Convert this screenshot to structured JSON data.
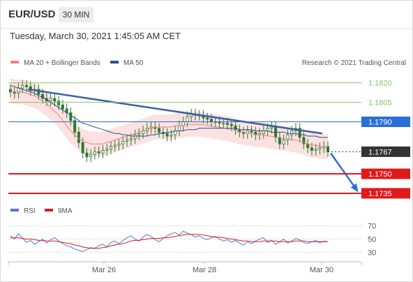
{
  "header": {
    "symbol": "EUR/USD",
    "interval": "30 MIN",
    "datetime": "Tuesday, March 30, 2021 1:45:05 AM CET"
  },
  "colors": {
    "ma20": "#f08080",
    "ma50": "#2f4f8f",
    "bollinger_fill": "#fcdcdc",
    "candle": "#2f7a2f",
    "trendline": "#3a5fa0",
    "resistance": "#8dc26a",
    "pivot": "#2a6fd6",
    "support": "#e0191b",
    "current": "#333333",
    "rsi": "#5577dd",
    "rsi_ma": "#e0191b"
  },
  "chart_data": [
    {
      "type": "candlestick",
      "legend": [
        {
          "name": "MA 20 + Bollinger Bands",
          "color": "#f08080"
        },
        {
          "name": "MA 50",
          "color": "#2f4f8f"
        }
      ],
      "credit": "Research © 2021 Trading Central",
      "ylim": [
        1.1728,
        1.183
      ],
      "levels": [
        {
          "value": 1.182,
          "label": "1.1820",
          "style": "resistance"
        },
        {
          "value": 1.1805,
          "label": "1.1805",
          "style": "resistance"
        },
        {
          "value": 1.179,
          "label": "1.1790",
          "style": "pivot"
        },
        {
          "value": 1.1767,
          "label": "1.1767",
          "style": "current"
        },
        {
          "value": 1.175,
          "label": "1.1750",
          "style": "support"
        },
        {
          "value": 1.1735,
          "label": "1.1735",
          "style": "support"
        }
      ],
      "x_ticks": [
        "Mar 26",
        "Mar 28",
        "Mar 30"
      ],
      "close_series": [
        1.1813,
        1.1812,
        1.1816,
        1.1818,
        1.1817,
        1.1814,
        1.1815,
        1.1811,
        1.1808,
        1.1806,
        1.1808,
        1.1806,
        1.1803,
        1.18,
        1.1797,
        1.1791,
        1.1782,
        1.1774,
        1.1766,
        1.1763,
        1.1765,
        1.1767,
        1.1766,
        1.1768,
        1.1769,
        1.1771,
        1.1772,
        1.1773,
        1.1775,
        1.1776,
        1.1777,
        1.178,
        1.1781,
        1.1783,
        1.1785,
        1.1786,
        1.1785,
        1.1782,
        1.1781,
        1.1779,
        1.178,
        1.1783,
        1.1787,
        1.179,
        1.1794,
        1.1796,
        1.1795,
        1.1795,
        1.1793,
        1.1792,
        1.179,
        1.179,
        1.1789,
        1.1789,
        1.1788,
        1.1787,
        1.1784,
        1.1782,
        1.1781,
        1.1783,
        1.1782,
        1.178,
        1.1781,
        1.1783,
        1.1785,
        1.1786,
        1.1778,
        1.1773,
        1.1776,
        1.178,
        1.1783,
        1.1785,
        1.1778,
        1.1773,
        1.177,
        1.1768,
        1.1769,
        1.177,
        1.1771,
        1.1767
      ],
      "ma20_series": [
        1.1814,
        1.1813,
        1.1813,
        1.1813,
        1.1812,
        1.1811,
        1.181,
        1.1808,
        1.1806,
        1.1804,
        1.1801,
        1.1798,
        1.1795,
        1.1791,
        1.1787,
        1.1783,
        1.178,
        1.1777,
        1.1775,
        1.1774,
        1.1773,
        1.1773,
        1.1773,
        1.1773,
        1.1774,
        1.1775,
        1.1776,
        1.1777,
        1.1778,
        1.1779,
        1.178,
        1.1781,
        1.1782,
        1.1783,
        1.1784,
        1.1785,
        1.1786,
        1.1786,
        1.1786,
        1.1786,
        1.1786,
        1.1787,
        1.1787,
        1.1787,
        1.1788,
        1.1788,
        1.1788,
        1.1788,
        1.1788,
        1.1787,
        1.1787,
        1.1786,
        1.1786,
        1.1785,
        1.1785,
        1.1784,
        1.1783,
        1.1782,
        1.1782,
        1.1781,
        1.1781,
        1.178,
        1.178,
        1.178,
        1.1779,
        1.1779,
        1.1778,
        1.1778,
        1.1777,
        1.1777,
        1.1776,
        1.1776,
        1.1775,
        1.1774,
        1.1773,
        1.1772,
        1.1772,
        1.1771,
        1.1771,
        1.1771
      ],
      "ma50_series": [
        1.1818,
        1.1817,
        1.1816,
        1.1815,
        1.1814,
        1.1813,
        1.1812,
        1.181,
        1.1809,
        1.1807,
        1.1805,
        1.1803,
        1.1801,
        1.1799,
        1.1797,
        1.1795,
        1.1793,
        1.1791,
        1.1789,
        1.1788,
        1.1787,
        1.1786,
        1.1785,
        1.1784,
        1.1783,
        1.1782,
        1.1781,
        1.1781,
        1.178,
        1.178,
        1.1779,
        1.1779,
        1.1779,
        1.1779,
        1.1779,
        1.178,
        1.178,
        1.1781,
        1.1781,
        1.1782,
        1.1782,
        1.1783,
        1.1783,
        1.1783,
        1.1784,
        1.1784,
        1.1784,
        1.1785,
        1.1785,
        1.1785,
        1.1785,
        1.1785,
        1.1785,
        1.1785,
        1.1785,
        1.1785,
        1.1785,
        1.1784,
        1.1784,
        1.1784,
        1.1784,
        1.1783,
        1.1783,
        1.1783,
        1.1783,
        1.1782,
        1.1782,
        1.1782,
        1.1782,
        1.1781,
        1.1781,
        1.1781,
        1.178,
        1.178,
        1.1779,
        1.1779,
        1.1779,
        1.1778,
        1.1778,
        1.1778
      ],
      "trendline": [
        [
          0,
          1.1815
        ],
        [
          78,
          1.1781
        ]
      ],
      "projection_to": 1.1735
    },
    {
      "type": "line",
      "legend": [
        {
          "name": "RSI",
          "color": "#5577dd"
        },
        {
          "name": "9MA",
          "color": "#e0191b"
        }
      ],
      "ylim": [
        22,
        78
      ],
      "y_ticks": [
        30,
        50,
        70
      ],
      "rsi": [
        55,
        50,
        58,
        52,
        45,
        48,
        42,
        46,
        50,
        44,
        49,
        52,
        47,
        43,
        40,
        38,
        35,
        33,
        31,
        34,
        37,
        36,
        40,
        42,
        38,
        45,
        47,
        43,
        48,
        52,
        55,
        50,
        47,
        53,
        57,
        54,
        49,
        46,
        51,
        55,
        58,
        60,
        56,
        62,
        59,
        57,
        53,
        55,
        51,
        49,
        52,
        54,
        50,
        47,
        49,
        45,
        48,
        44,
        41,
        46,
        43,
        47,
        50,
        52,
        45,
        48,
        42,
        46,
        50,
        44,
        47,
        51,
        49,
        45,
        43,
        46,
        48,
        44,
        47,
        46
      ],
      "ma9": [
        52,
        52,
        52,
        51,
        50,
        50,
        49,
        48,
        48,
        47,
        47,
        47,
        46,
        45,
        44,
        43,
        41,
        40,
        38,
        37,
        36,
        36,
        36,
        37,
        38,
        40,
        41,
        42,
        43,
        45,
        47,
        48,
        48,
        49,
        50,
        51,
        51,
        51,
        52,
        52,
        53,
        54,
        55,
        56,
        57,
        57,
        57,
        57,
        56,
        55,
        54,
        53,
        53,
        52,
        51,
        50,
        49,
        48,
        47,
        47,
        46,
        46,
        46,
        47,
        47,
        47,
        47,
        46,
        46,
        46,
        46,
        47,
        47,
        47,
        46,
        46,
        46,
        46,
        46,
        46
      ]
    }
  ]
}
